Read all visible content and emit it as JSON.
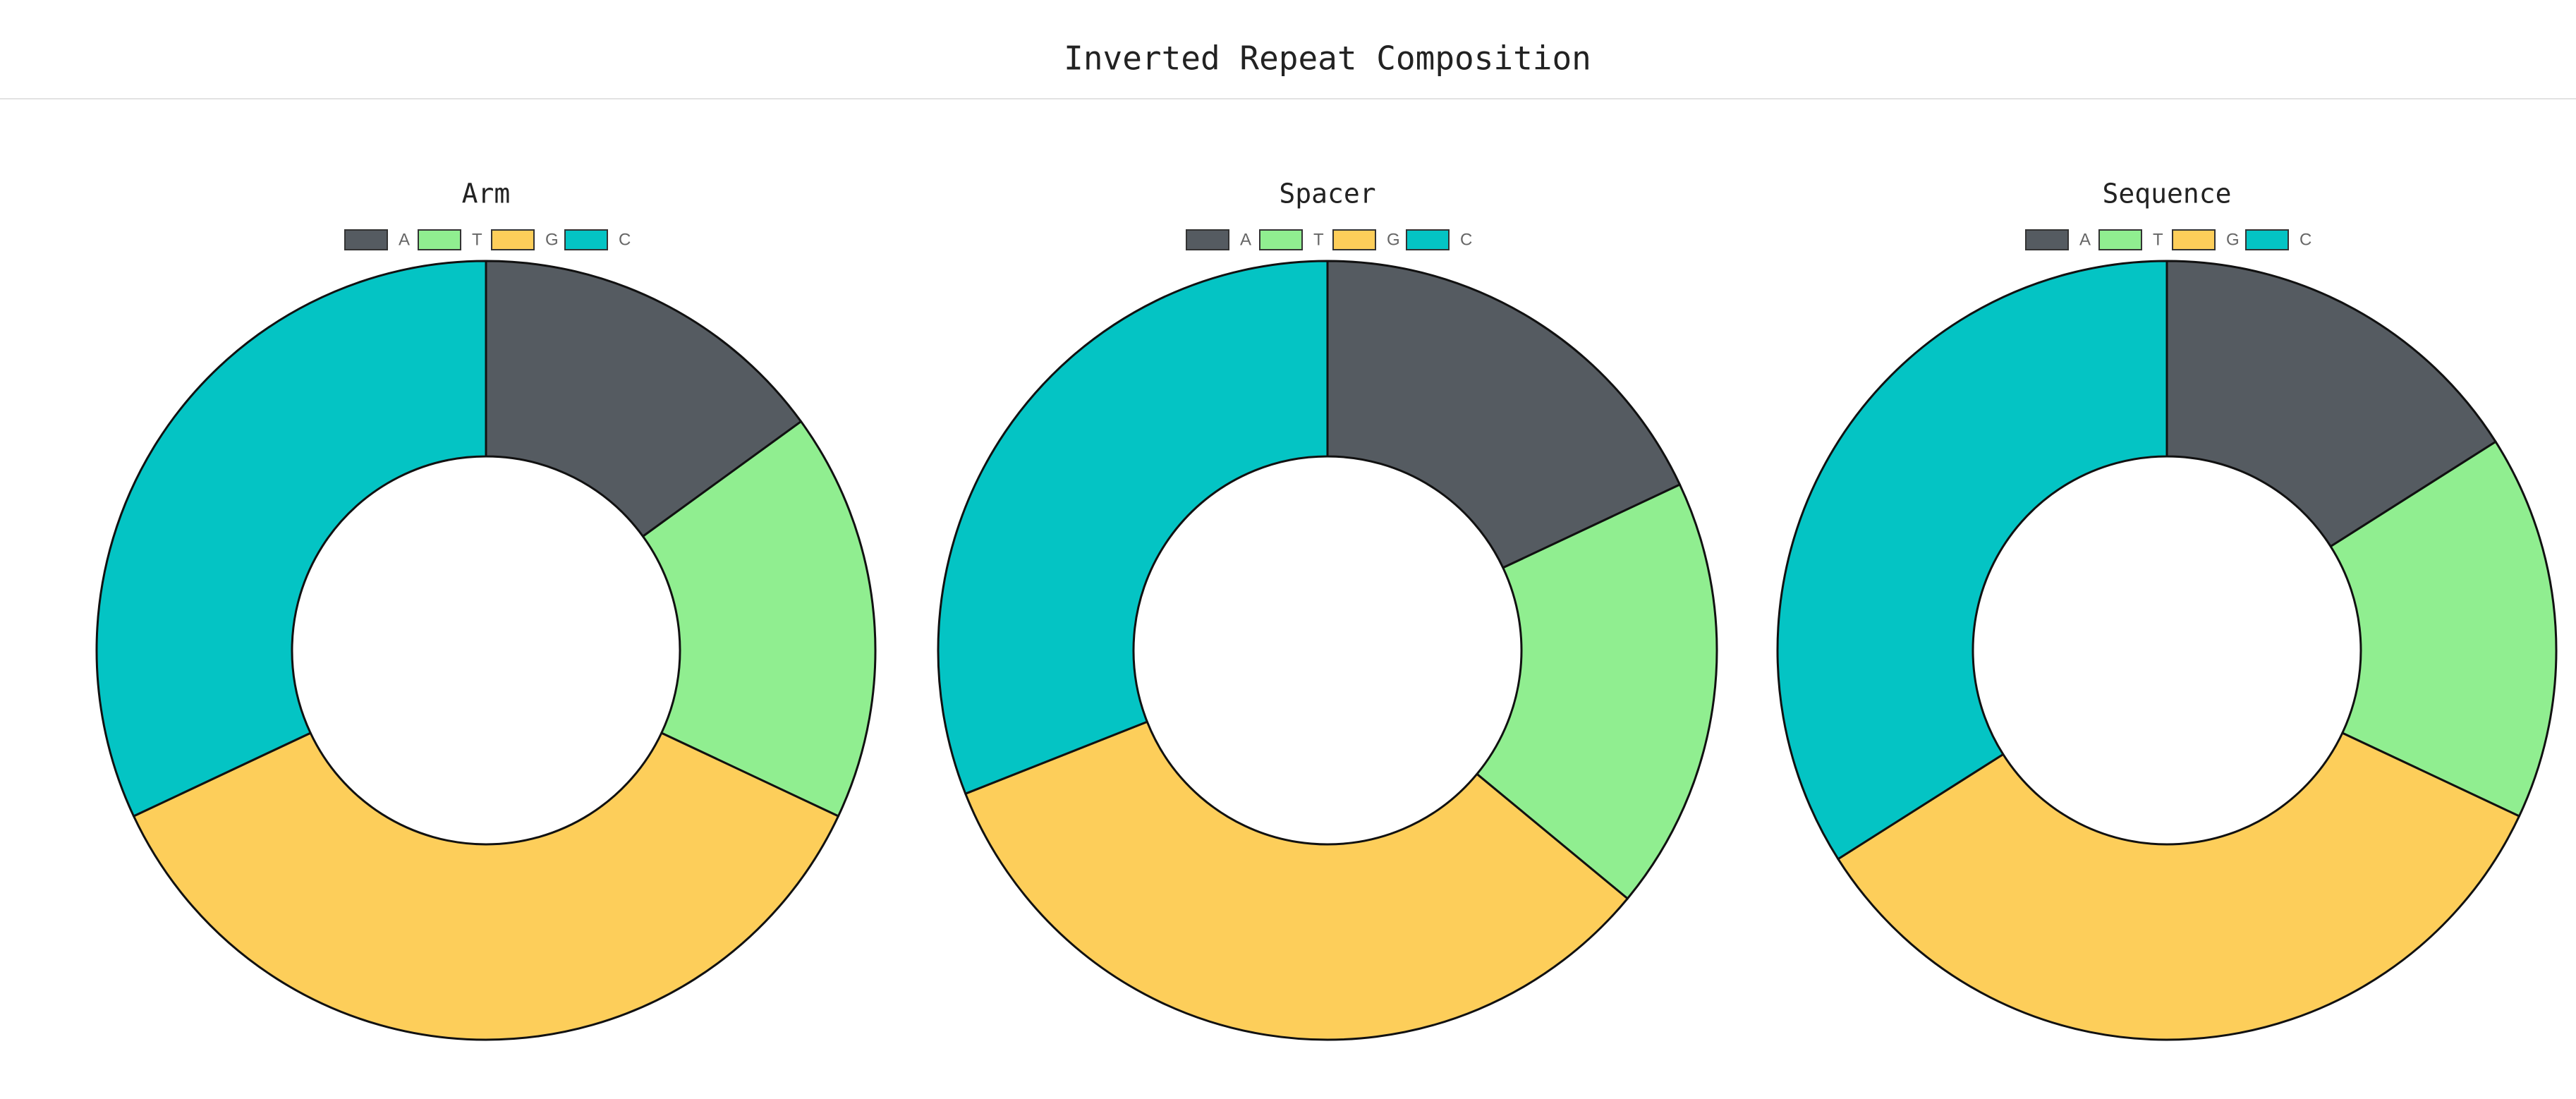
{
  "title": "Inverted Repeat Composition",
  "chart_data": [
    {
      "type": "pie",
      "donut": true,
      "title": "Arm",
      "categories": [
        "A",
        "T",
        "G",
        "C"
      ],
      "values": [
        15,
        17,
        36,
        32
      ],
      "colors": [
        "#555b61",
        "#90ee90",
        "#fdce5a",
        "#04c4c4"
      ]
    },
    {
      "type": "pie",
      "donut": true,
      "title": "Spacer",
      "categories": [
        "A",
        "T",
        "G",
        "C"
      ],
      "values": [
        18,
        18,
        33,
        31
      ],
      "colors": [
        "#555b61",
        "#90ee90",
        "#fdce5a",
        "#04c4c4"
      ]
    },
    {
      "type": "pie",
      "donut": true,
      "title": "Sequence",
      "categories": [
        "A",
        "T",
        "G",
        "C"
      ],
      "values": [
        16,
        16,
        34,
        34
      ],
      "colors": [
        "#555b61",
        "#90ee90",
        "#fdce5a",
        "#04c4c4"
      ]
    }
  ]
}
